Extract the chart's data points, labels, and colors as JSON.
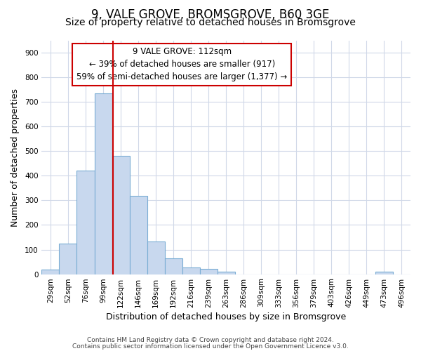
{
  "title": "9, VALE GROVE, BROMSGROVE, B60 3GE",
  "subtitle": "Size of property relative to detached houses in Bromsgrove",
  "xlabel": "Distribution of detached houses by size in Bromsgrove",
  "ylabel": "Number of detached properties",
  "bar_labels": [
    "29sqm",
    "52sqm",
    "76sqm",
    "99sqm",
    "122sqm",
    "146sqm",
    "169sqm",
    "192sqm",
    "216sqm",
    "239sqm",
    "263sqm",
    "286sqm",
    "309sqm",
    "333sqm",
    "356sqm",
    "379sqm",
    "403sqm",
    "426sqm",
    "449sqm",
    "473sqm",
    "496sqm"
  ],
  "bar_heights": [
    20,
    125,
    420,
    735,
    480,
    318,
    132,
    65,
    28,
    22,
    10,
    0,
    0,
    0,
    0,
    0,
    0,
    0,
    0,
    10,
    0
  ],
  "bar_color": "#c8d8ee",
  "bar_edge_color": "#7aadd4",
  "vline_color": "#cc0000",
  "vline_x": 4.0,
  "ylim": [
    0,
    950
  ],
  "yticks": [
    0,
    100,
    200,
    300,
    400,
    500,
    600,
    700,
    800,
    900
  ],
  "annotation_text": "9 VALE GROVE: 112sqm\n← 39% of detached houses are smaller (917)\n59% of semi-detached houses are larger (1,377) →",
  "annotation_box_facecolor": "#ffffff",
  "annotation_box_edgecolor": "#cc0000",
  "footer1": "Contains HM Land Registry data © Crown copyright and database right 2024.",
  "footer2": "Contains public sector information licensed under the Open Government Licence v3.0.",
  "fig_bg_color": "#ffffff",
  "plot_bg_color": "#ffffff",
  "grid_color": "#d0d8e8",
  "title_fontsize": 12,
  "subtitle_fontsize": 10,
  "label_fontsize": 9,
  "tick_fontsize": 7.5,
  "annotation_fontsize": 8.5,
  "footer_fontsize": 6.5
}
